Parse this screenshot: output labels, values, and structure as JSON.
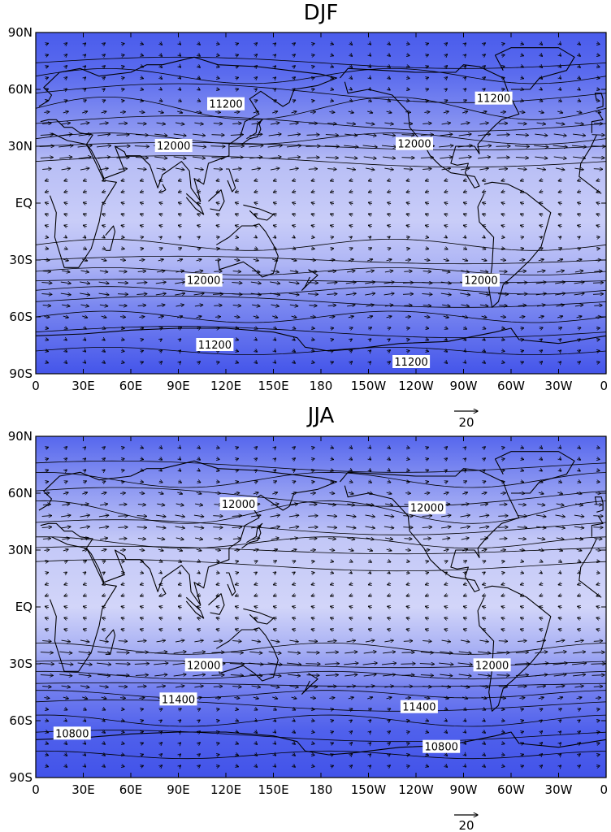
{
  "panels": [
    {
      "title": "DJF",
      "lat_ticks": [
        "90N",
        "60N",
        "30N",
        "EQ",
        "30S",
        "60S",
        "90S"
      ],
      "lon_ticks": [
        "0",
        "30E",
        "60E",
        "90E",
        "120E",
        "150E",
        "180",
        "150W",
        "120W",
        "90W",
        "60W",
        "30W",
        "0"
      ],
      "contour_labels": [
        {
          "text": "11200",
          "lon": 120,
          "lat": 52
        },
        {
          "text": "11200",
          "lon": 289,
          "lat": 55
        },
        {
          "text": "12000",
          "lon": 87,
          "lat": 30
        },
        {
          "text": "12000",
          "lon": 239,
          "lat": 31
        },
        {
          "text": "12000",
          "lon": 106,
          "lat": -41
        },
        {
          "text": "12000",
          "lon": 281,
          "lat": -41
        },
        {
          "text": "11200",
          "lon": 113,
          "lat": -75
        },
        {
          "text": "11200",
          "lon": 237,
          "lat": -84
        }
      ],
      "reference_vector": "20",
      "wind_regime": "winter"
    },
    {
      "title": "JJA",
      "lat_ticks": [
        "90N",
        "60N",
        "30N",
        "EQ",
        "30S",
        "60S",
        "90S"
      ],
      "lon_ticks": [
        "0",
        "30E",
        "60E",
        "90E",
        "120E",
        "150E",
        "180",
        "150W",
        "120W",
        "90W",
        "60W",
        "30W",
        "0"
      ],
      "contour_labels": [
        {
          "text": "12000",
          "lon": 128,
          "lat": 54
        },
        {
          "text": "12000",
          "lon": 247,
          "lat": 52
        },
        {
          "text": "12000",
          "lon": 106,
          "lat": -31
        },
        {
          "text": "12000",
          "lon": 288,
          "lat": -31
        },
        {
          "text": "11400",
          "lon": 90,
          "lat": -49
        },
        {
          "text": "11400",
          "lon": 242,
          "lat": -53
        },
        {
          "text": "10800",
          "lon": 23,
          "lat": -67
        },
        {
          "text": "10800",
          "lon": 256,
          "lat": -74
        }
      ],
      "reference_vector": "20",
      "wind_regime": "summer"
    }
  ],
  "colors": {
    "fill_low": "#5566ee",
    "fill_mid": "#aab1f4",
    "fill_high": "#d0d4f8",
    "lines": "#000000"
  }
}
